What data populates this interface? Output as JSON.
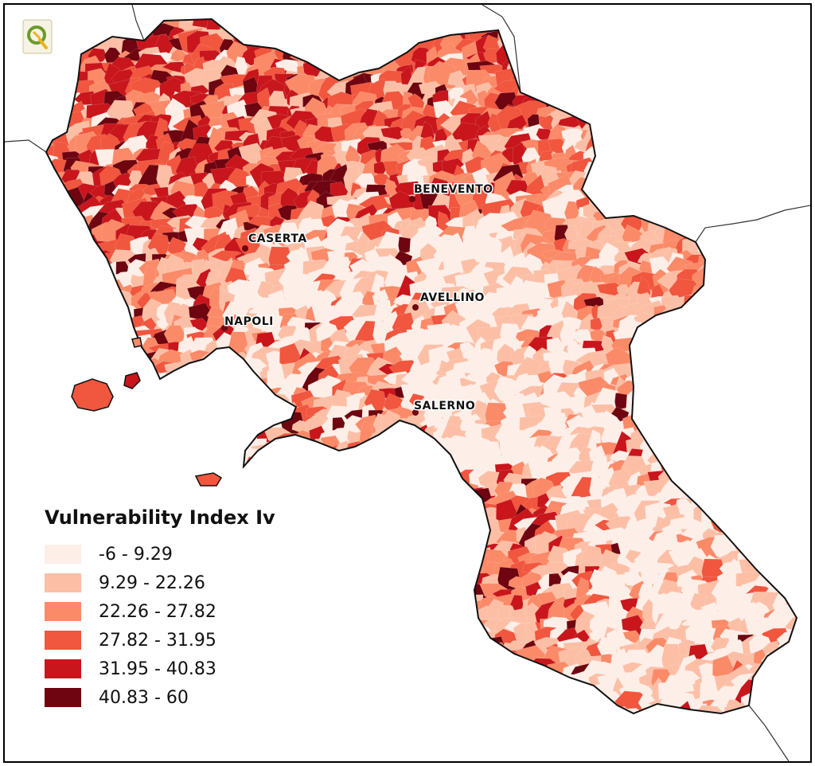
{
  "map": {
    "legend_title": "Vulnerability Index Iv",
    "classes": [
      {
        "label": "-6 - 9.29",
        "color": "#fdeee8"
      },
      {
        "label": "9.29 - 22.26",
        "color": "#fcbfa6"
      },
      {
        "label": "22.26 - 27.82",
        "color": "#fb8a68"
      },
      {
        "label": "27.82 - 31.95",
        "color": "#f1563e"
      },
      {
        "label": "31.95 - 40.83",
        "color": "#c8161c"
      },
      {
        "label": "40.83 - 60",
        "color": "#6e0510"
      }
    ],
    "cities": [
      {
        "name": "BENEVENTO"
      },
      {
        "name": "CASERTA"
      },
      {
        "name": "AVELLINO"
      },
      {
        "name": "NAPOLI"
      },
      {
        "name": "SALERNO"
      }
    ]
  }
}
